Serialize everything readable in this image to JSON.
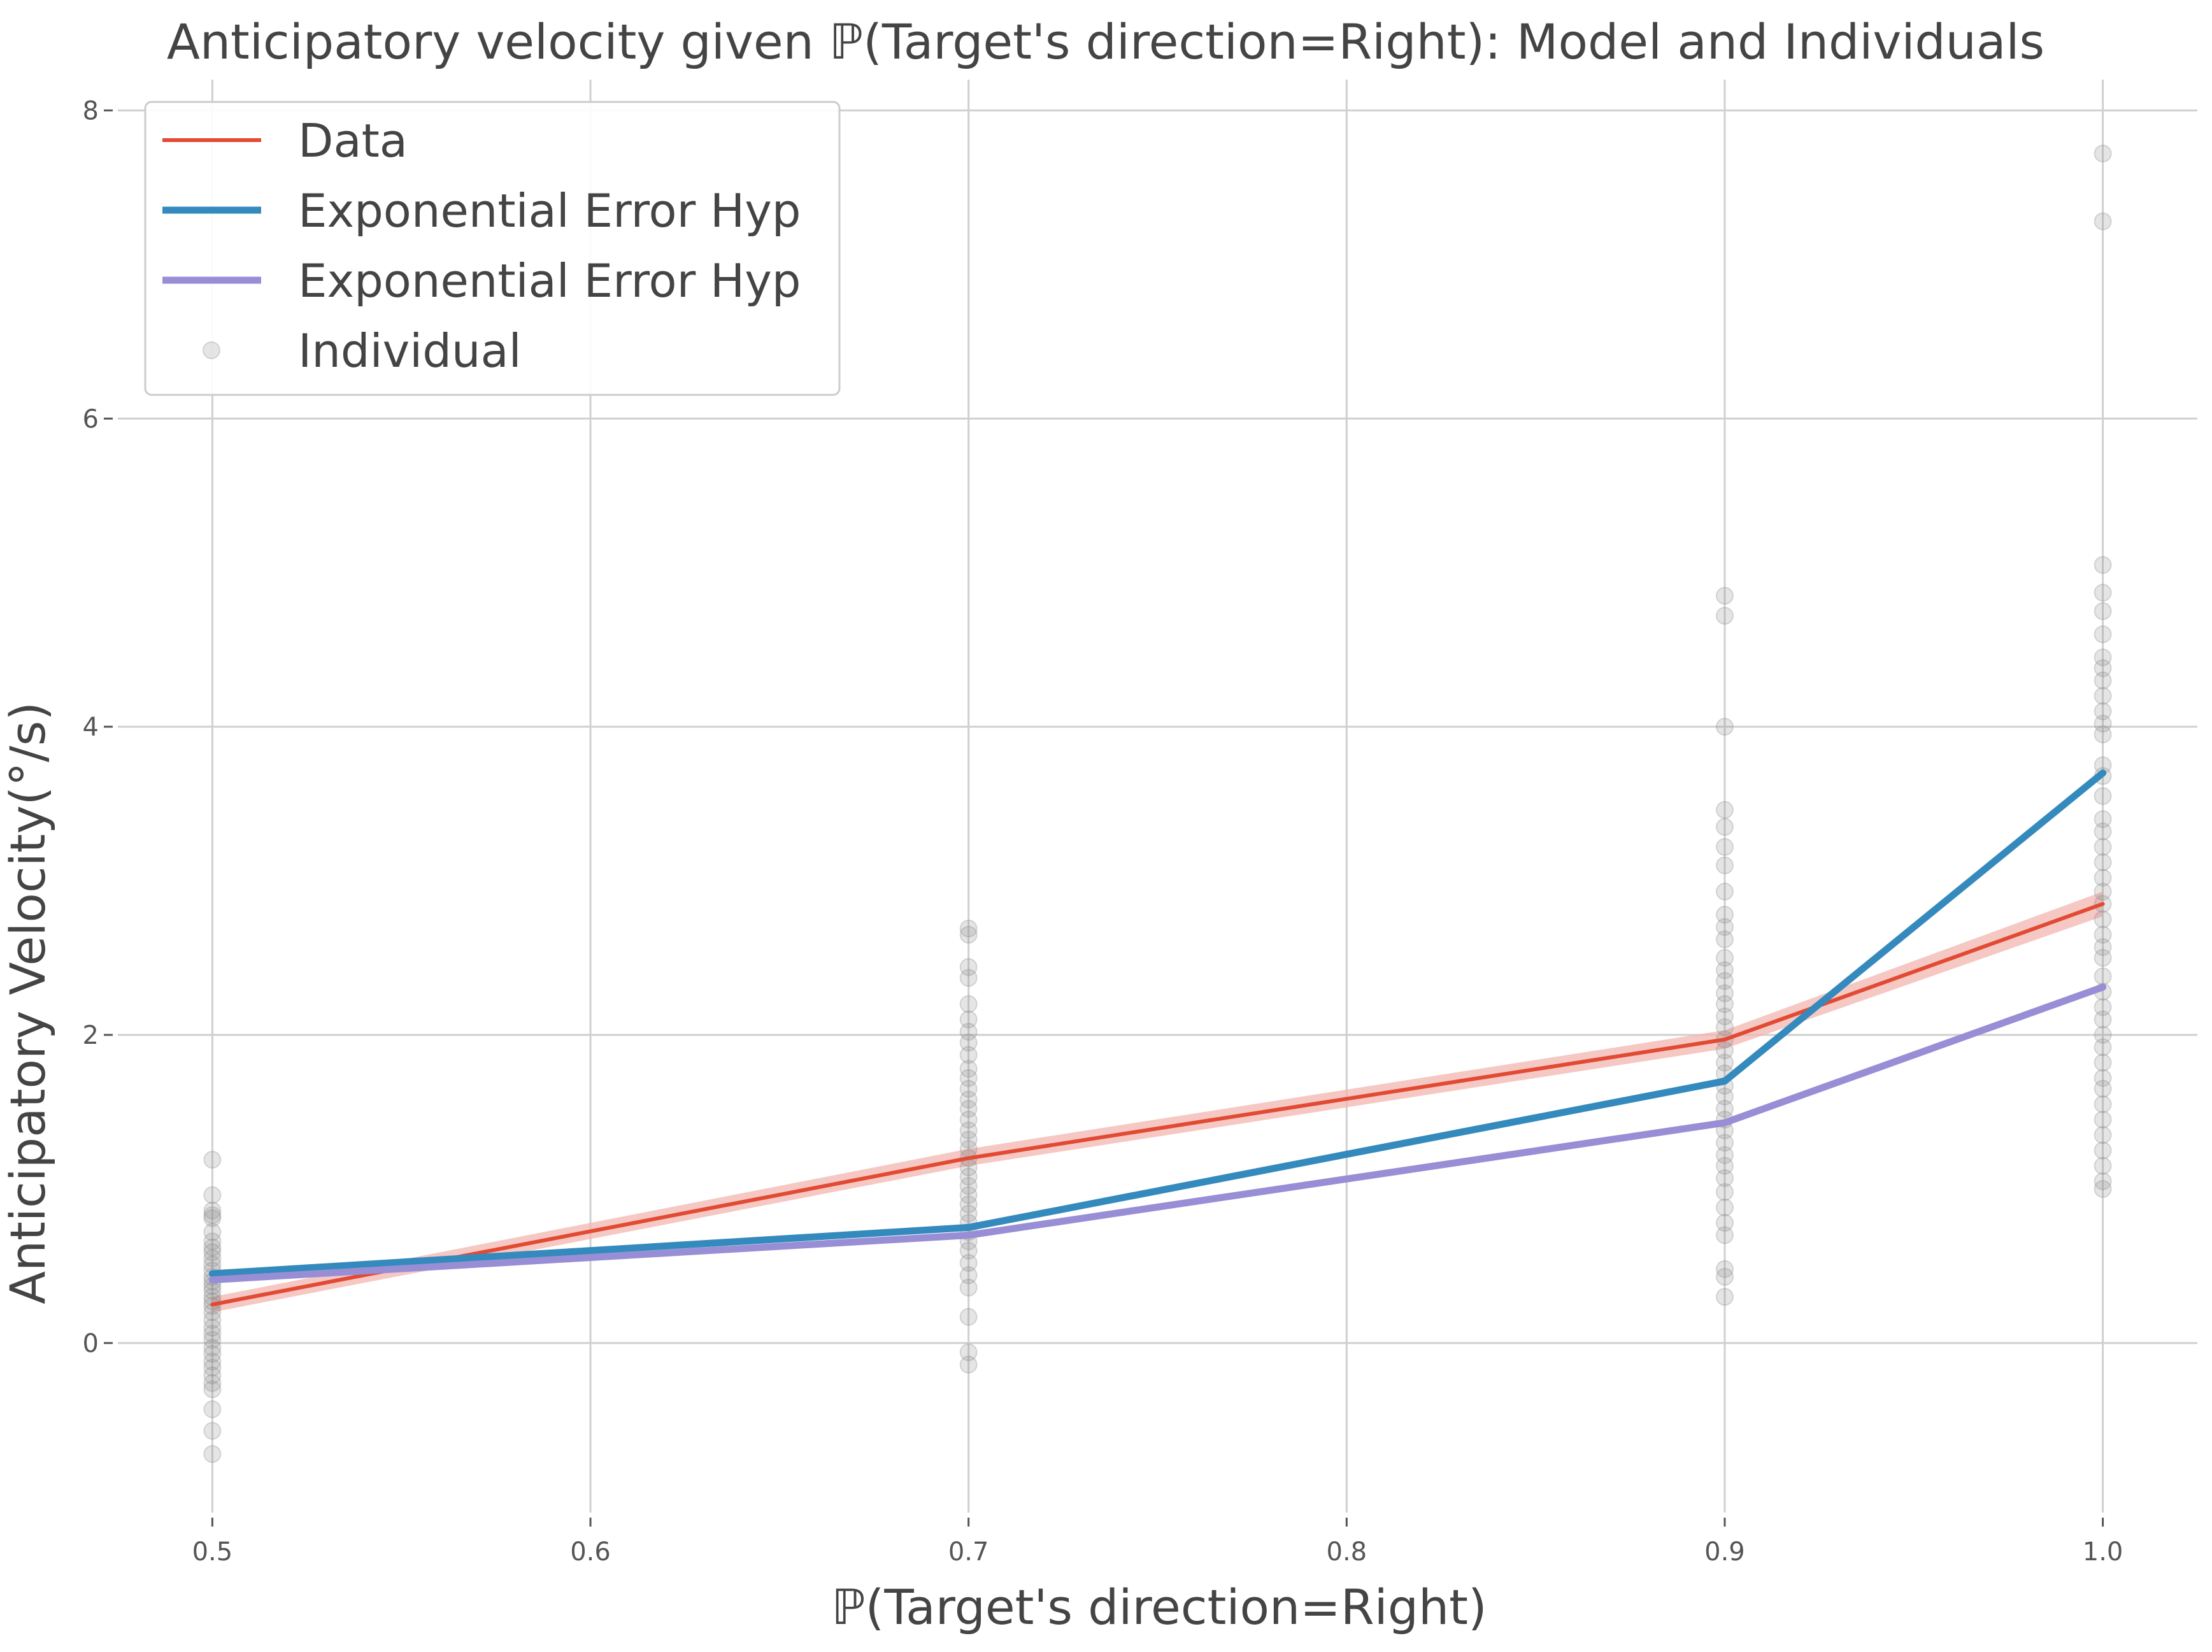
{
  "chart_data": {
    "type": "line",
    "title": "Anticipatory velocity given ℙ(Target's direction=Right): Model and Individuals",
    "xlabel": "ℙ(Target's direction=Right)",
    "ylabel": "Anticipatory Velocity(°/s)",
    "xlim": [
      0.475,
      1.025
    ],
    "ylim": [
      -1.1,
      8.2
    ],
    "x_ticks": [
      0.5,
      0.6,
      0.7,
      0.8,
      0.9,
      1.0
    ],
    "x_tick_labels": [
      "0.5",
      "0.6",
      "0.7",
      "0.8",
      "0.9",
      "1.0"
    ],
    "y_ticks": [
      0,
      2,
      4,
      6,
      8
    ],
    "y_tick_labels": [
      "0",
      "2",
      "4",
      "6",
      "8"
    ],
    "grid": true,
    "legend_position": "top-left",
    "x": [
      0.5,
      0.7,
      0.9,
      1.0
    ],
    "series": [
      {
        "name": "Data",
        "kind": "line",
        "color": "#e24a33",
        "values": [
          0.25,
          1.2,
          1.97,
          2.85
        ],
        "band_lower": [
          0.2,
          1.15,
          1.91,
          2.77
        ],
        "band_upper": [
          0.3,
          1.26,
          2.03,
          2.93
        ],
        "band_color": "#f2b5b0"
      },
      {
        "name": "Exponential Error Hyp",
        "kind": "line",
        "color": "#348abd",
        "values": [
          0.45,
          0.75,
          1.7,
          3.7
        ]
      },
      {
        "name": "Exponential Error Hyp",
        "kind": "line",
        "color": "#988ed5",
        "values": [
          0.41,
          0.7,
          1.43,
          2.31
        ]
      },
      {
        "name": "Individual",
        "kind": "scatter",
        "color": "#888888",
        "points": {
          "0.5": [
            1.19,
            0.96,
            0.86,
            0.83,
            0.81,
            0.72,
            0.66,
            0.62,
            0.59,
            0.55,
            0.51,
            0.47,
            0.43,
            0.4,
            0.37,
            0.34,
            0.3,
            0.27,
            0.24,
            0.2,
            0.15,
            0.1,
            0.06,
            0.02,
            -0.03,
            -0.07,
            -0.12,
            -0.16,
            -0.21,
            -0.26,
            -0.3,
            -0.43,
            -0.57,
            -0.72
          ],
          "0.7": [
            2.69,
            2.65,
            2.44,
            2.37,
            2.2,
            2.1,
            2.02,
            1.95,
            1.87,
            1.78,
            1.72,
            1.65,
            1.58,
            1.52,
            1.45,
            1.38,
            1.32,
            1.26,
            1.2,
            1.14,
            1.08,
            1.02,
            0.96,
            0.9,
            0.84,
            0.78,
            0.72,
            0.66,
            0.6,
            0.52,
            0.44,
            0.36,
            0.17,
            -0.06,
            -0.14
          ],
          "0.9": [
            4.85,
            4.72,
            4.0,
            3.46,
            3.35,
            3.22,
            3.1,
            2.93,
            2.78,
            2.7,
            2.62,
            2.5,
            2.42,
            2.35,
            2.27,
            2.2,
            2.12,
            2.05,
            1.97,
            1.9,
            1.82,
            1.75,
            1.67,
            1.6,
            1.52,
            1.45,
            1.38,
            1.3,
            1.22,
            1.15,
            1.07,
            0.98,
            0.88,
            0.78,
            0.7,
            0.48,
            0.43,
            0.3
          ],
          "1.0": [
            7.72,
            7.28,
            5.05,
            4.87,
            4.75,
            4.6,
            4.45,
            4.38,
            4.3,
            4.2,
            4.1,
            4.02,
            3.95,
            3.75,
            3.68,
            3.55,
            3.4,
            3.32,
            3.22,
            3.12,
            3.02,
            2.93,
            2.85,
            2.75,
            2.65,
            2.57,
            2.5,
            2.38,
            2.28,
            2.18,
            2.1,
            2.0,
            1.92,
            1.82,
            1.72,
            1.65,
            1.55,
            1.45,
            1.35,
            1.25,
            1.15,
            1.05,
            1.0
          ]
        }
      }
    ]
  }
}
